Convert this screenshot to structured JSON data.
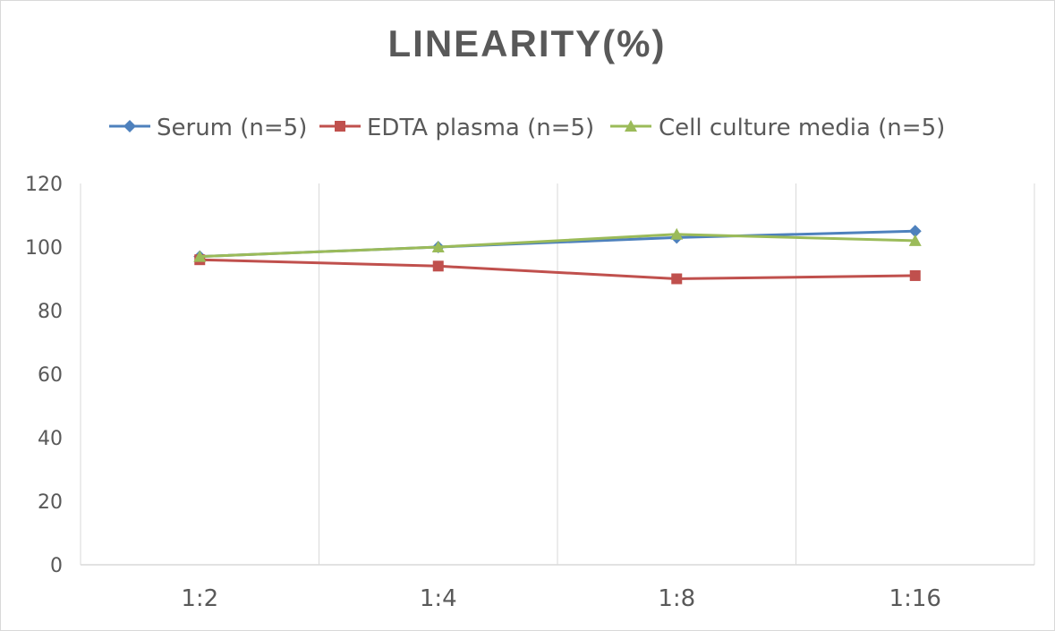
{
  "chart_data": {
    "type": "line",
    "title": "LINEARITY(%)",
    "categories": [
      "1:2",
      "1:4",
      "1:8",
      "1:16"
    ],
    "ylim": [
      0,
      120
    ],
    "yticks": [
      0,
      20,
      40,
      60,
      80,
      100,
      120
    ],
    "grid": "vertical",
    "legend": "top",
    "series": [
      {
        "name": "Serum (n=5)",
        "values": [
          97,
          100,
          103,
          105
        ],
        "color": "#4e81bd",
        "marker": "diamond"
      },
      {
        "name": "EDTA plasma (n=5)",
        "values": [
          96,
          94,
          90,
          91
        ],
        "color": "#c0504d",
        "marker": "square"
      },
      {
        "name": "Cell culture media (n=5)",
        "values": [
          97,
          100,
          104,
          102
        ],
        "color": "#9bbb59",
        "marker": "triangle"
      }
    ]
  }
}
